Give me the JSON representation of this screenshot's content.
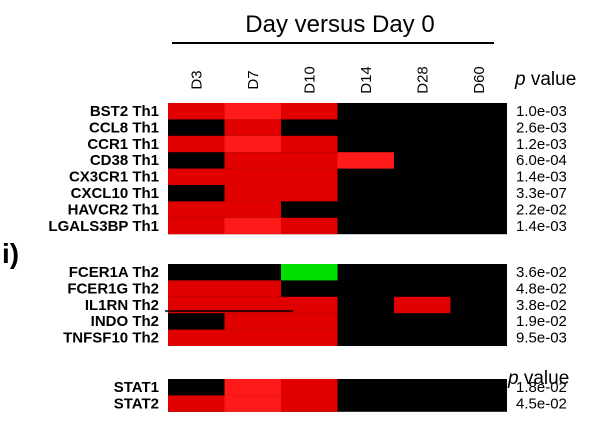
{
  "chart_data": {
    "type": "heatmap",
    "title": "Day versus Day 0",
    "pvalue_header": "p value",
    "pvalue_header_lower": "p value",
    "columns": [
      "D3",
      "D7",
      "D10",
      "D14",
      "D28",
      "D60"
    ],
    "panel_label": "i)",
    "colors": {
      "none": "#000000",
      "up_weak": "#cc0000",
      "up_medium": "#e00000",
      "up_strong": "#ff1a1a",
      "down": "#00e000"
    },
    "blocks": [
      {
        "rows": [
          {
            "label": "BST2 Th1",
            "pvalue": "1.0e-03",
            "levels": [
              2,
              3,
              2,
              0,
              0,
              0
            ]
          },
          {
            "label": "CCL8 Th1",
            "pvalue": "2.6e-03",
            "levels": [
              0,
              2,
              0,
              0,
              0,
              0
            ]
          },
          {
            "label": "CCR1 Th1",
            "pvalue": "1.2e-03",
            "levels": [
              2,
              3,
              2,
              0,
              0,
              0
            ]
          },
          {
            "label": "CD38 Th1",
            "pvalue": "6.0e-04",
            "levels": [
              0,
              2,
              2,
              3,
              0,
              0
            ]
          },
          {
            "label": "CX3CR1 Th1",
            "pvalue": "1.4e-03",
            "levels": [
              2,
              2,
              2,
              0,
              0,
              0
            ]
          },
          {
            "label": "CXCL10 Th1",
            "pvalue": "3.3e-07",
            "levels": [
              0,
              2,
              2,
              0,
              0,
              0
            ]
          },
          {
            "label": "HAVCR2 Th1",
            "pvalue": "2.2e-02",
            "levels": [
              2,
              2,
              0,
              0,
              0,
              0
            ]
          },
          {
            "label": "LGALS3BP Th1",
            "pvalue": "1.4e-03",
            "levels": [
              2,
              3,
              2,
              0,
              0,
              0
            ]
          }
        ]
      },
      {
        "rows": [
          {
            "label": "FCER1A Th2",
            "pvalue": "3.6e-02",
            "levels": [
              0,
              0,
              -1,
              0,
              0,
              0
            ]
          },
          {
            "label": "FCER1G Th2",
            "pvalue": "4.8e-02",
            "levels": [
              2,
              2,
              0,
              0,
              0,
              0
            ]
          },
          {
            "label": "IL1RN Th2",
            "pvalue": "3.8e-02",
            "levels": [
              2,
              2,
              2,
              0,
              2,
              0
            ]
          },
          {
            "label": "INDO Th2",
            "pvalue": "1.9e-02",
            "levels": [
              0,
              2,
              2,
              0,
              0,
              0
            ]
          },
          {
            "label": "TNFSF10 Th2",
            "pvalue": "9.5e-03",
            "levels": [
              2,
              2,
              2,
              0,
              0,
              0
            ]
          }
        ]
      },
      {
        "rows": [
          {
            "label": "STAT1",
            "pvalue": "1.8e-02",
            "levels": [
              0,
              3,
              2,
              0,
              0,
              0
            ]
          },
          {
            "label": "STAT2",
            "pvalue": "4.5e-02",
            "levels": [
              2,
              3,
              2,
              0,
              0,
              0
            ]
          }
        ]
      }
    ]
  }
}
